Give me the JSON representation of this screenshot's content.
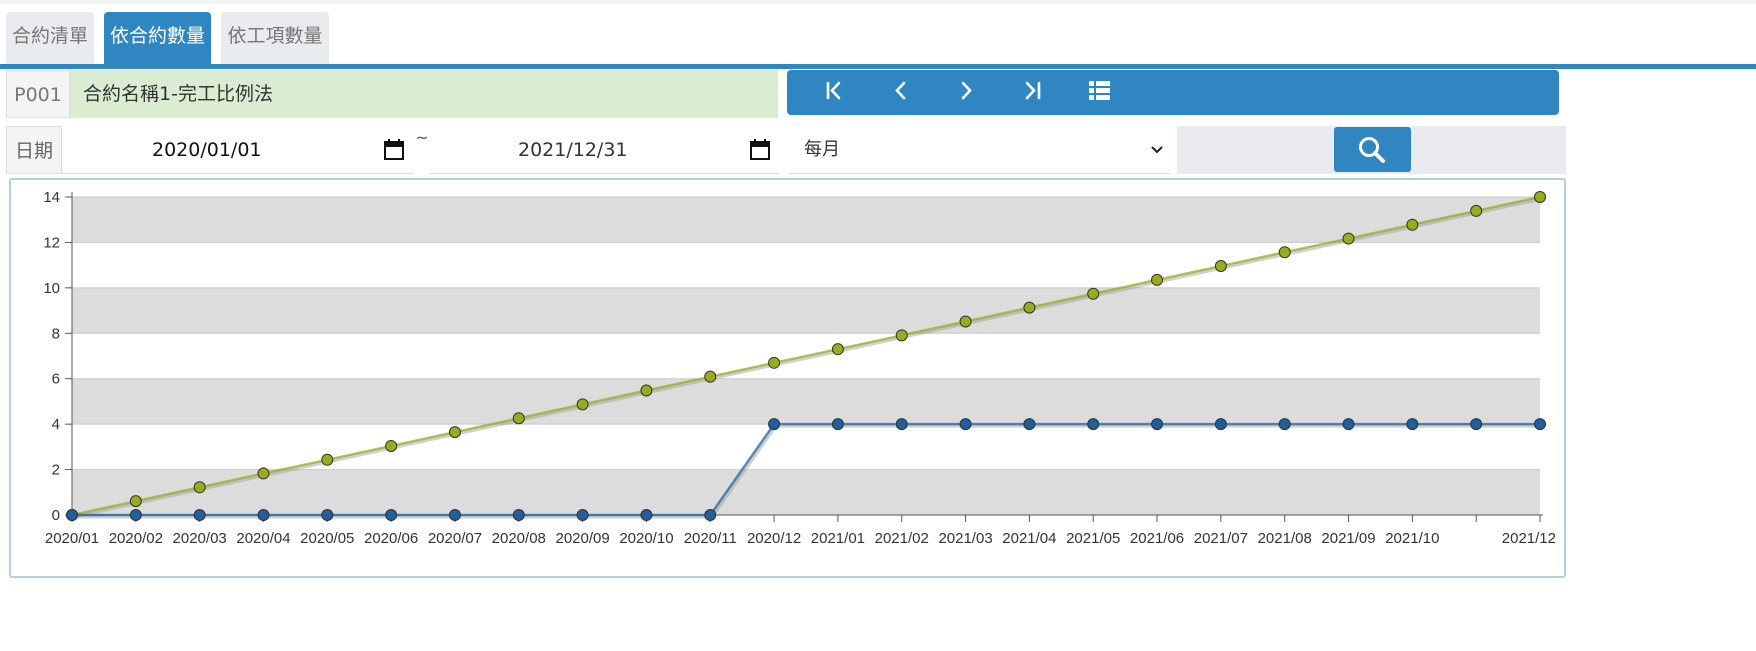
{
  "tabs": [
    "合約清單",
    "依合約數量",
    "依工項數量"
  ],
  "active_tab": 1,
  "contract": {
    "code": "P001",
    "name": "合約名稱1-完工比例法"
  },
  "filter": {
    "label": "日期",
    "start": "2020/01/01",
    "separator": "~",
    "end": "2021/12/31",
    "period": "每月"
  },
  "chart_data": {
    "type": "line",
    "categories": [
      "2020/01",
      "2020/02",
      "2020/03",
      "2020/04",
      "2020/05",
      "2020/06",
      "2020/07",
      "2020/08",
      "2020/09",
      "2020/10",
      "2020/11",
      "2020/12",
      "2021/01",
      "2021/02",
      "2021/03",
      "2021/04",
      "2021/05",
      "2021/06",
      "2021/07",
      "2021/08",
      "2021/09",
      "2021/10",
      null,
      "2021/12"
    ],
    "series": [
      {
        "color": "#9aab1e",
        "values": [
          0,
          0.61,
          1.22,
          1.83,
          2.43,
          3.04,
          3.65,
          4.26,
          4.87,
          5.48,
          6.09,
          6.7,
          7.3,
          7.91,
          8.52,
          9.13,
          9.74,
          10.35,
          10.96,
          11.57,
          12.17,
          12.78,
          13.39,
          14
        ]
      },
      {
        "color": "#1f5f9f",
        "values": [
          0,
          0,
          0,
          0,
          0,
          0,
          0,
          0,
          0,
          0,
          0,
          4,
          4,
          4,
          4,
          4,
          4,
          4,
          4,
          4,
          4,
          4,
          4,
          4
        ]
      }
    ],
    "ylim": [
      0,
      14
    ],
    "yticks": [
      0,
      2,
      4,
      6,
      8,
      10,
      12,
      14
    ],
    "grid_bands": true
  }
}
